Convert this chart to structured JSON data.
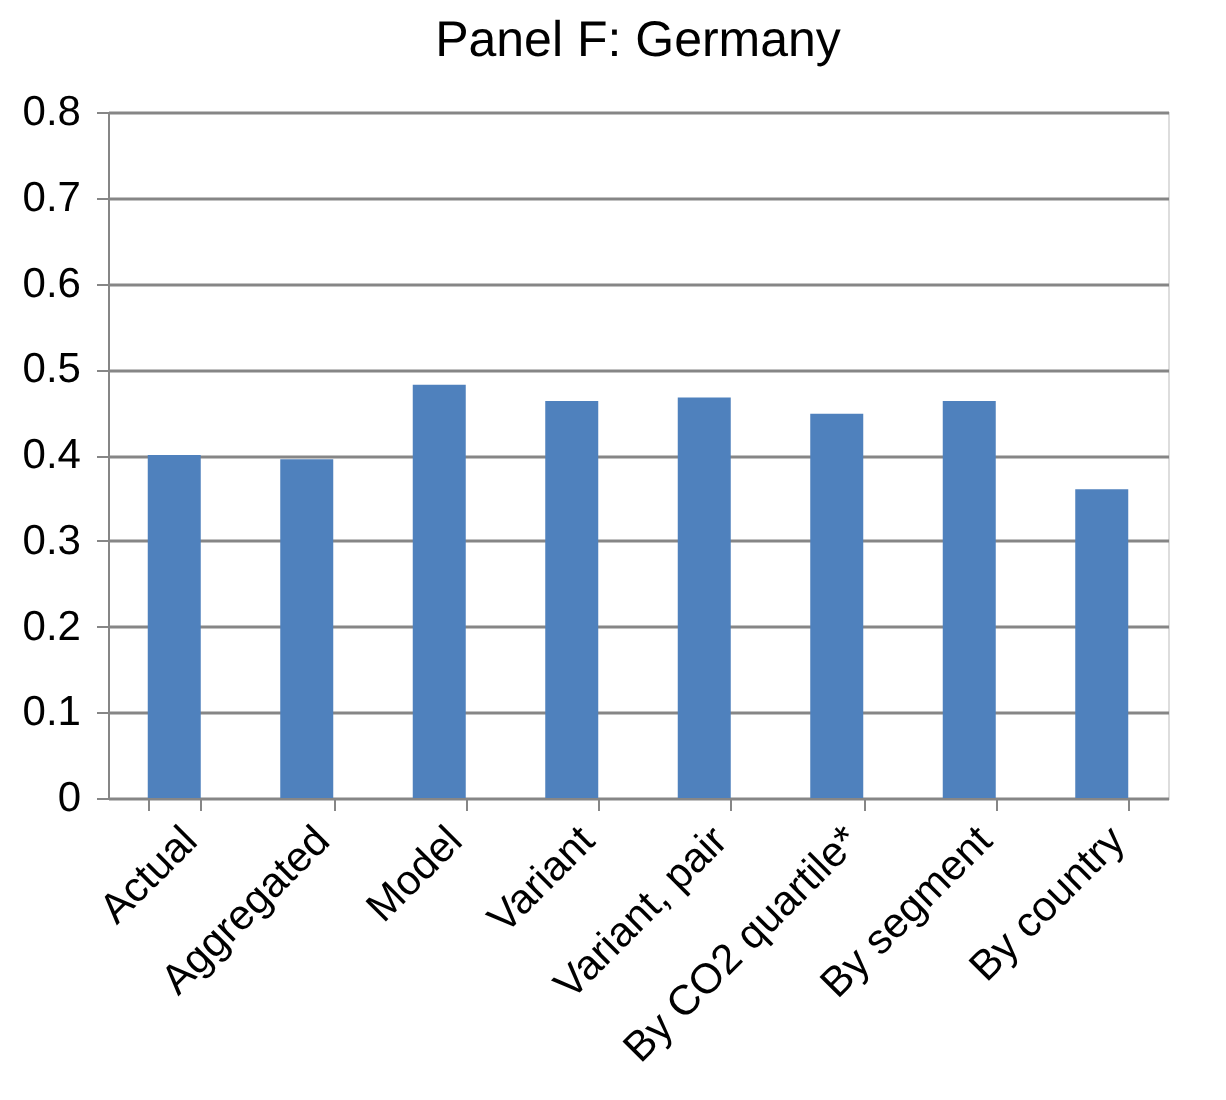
{
  "chart_data": {
    "type": "bar",
    "title": "Panel F: Germany",
    "categories": [
      "Actual",
      "Aggregated",
      "Model",
      "Variant",
      "Variant, pair",
      "By CO2 quartile*",
      "By segment",
      "By country"
    ],
    "values": [
      0.4,
      0.395,
      0.482,
      0.463,
      0.467,
      0.448,
      0.463,
      0.36
    ],
    "color": "#4f81bd",
    "ylim": [
      0,
      0.8
    ],
    "yticks": [
      0,
      0.1,
      0.2,
      0.3,
      0.4,
      0.5,
      0.6,
      0.7,
      0.8
    ],
    "grid": "y"
  }
}
